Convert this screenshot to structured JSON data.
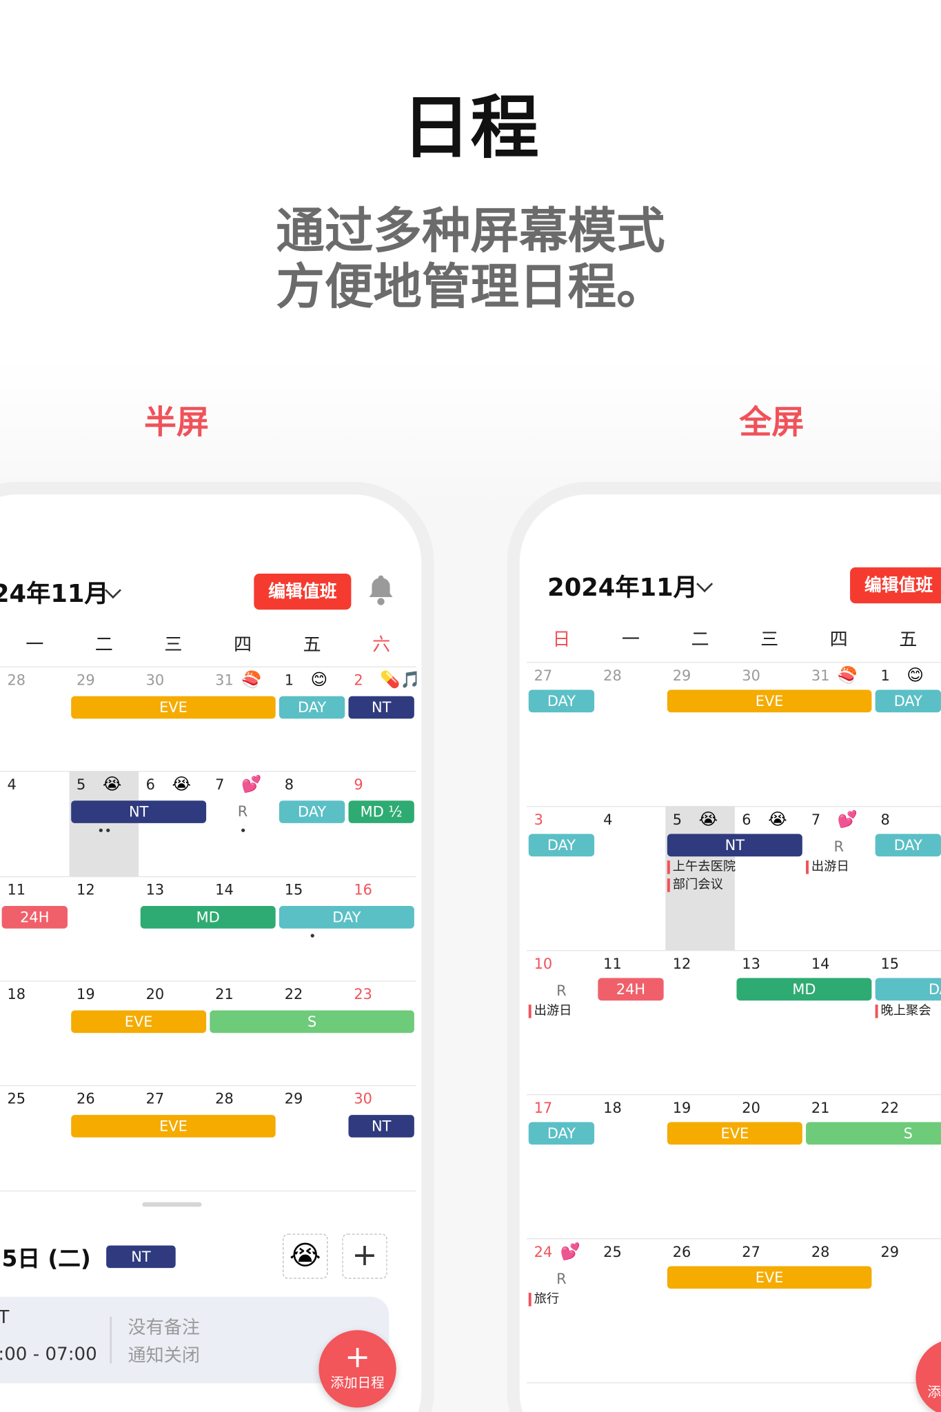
{
  "header": {
    "title": "日程",
    "subtitle": [
      "通过多种屏幕模式",
      "方便地管理日程。"
    ]
  },
  "modes": [
    "半屏",
    "全屏"
  ],
  "month": "2024年11月",
  "edit_button": "编辑值班",
  "weekdays": [
    "日",
    "一",
    "二",
    "三",
    "四",
    "五",
    "六"
  ],
  "shift_colors": {
    "EVE": "#f5ab00",
    "DAY": "#5bbfc6",
    "NT": "#2f3b7e",
    "MD": "#2eab72",
    "MD ½": "#2eab72",
    "24H": "#f0606a",
    "S": "#6dcb79"
  },
  "weeks": [
    {
      "cells": [
        {
          "day": 27,
          "other_month": true,
          "shift": "DAY"
        },
        {
          "day": 28,
          "other_month": true
        },
        {
          "day": 29,
          "other_month": true,
          "shift": "EVE"
        },
        {
          "day": 30,
          "other_month": true,
          "shift": "EVE"
        },
        {
          "day": 31,
          "other_month": true,
          "emoji": "🍣",
          "shift": "EVE"
        },
        {
          "day": 1,
          "emoji": "😊",
          "shift": "DAY"
        },
        {
          "day": 2,
          "emoji": "💊🎵",
          "shift": "NT"
        }
      ]
    },
    {
      "cells": [
        {
          "day": 3,
          "shift": "DAY"
        },
        {
          "day": 4
        },
        {
          "day": 5,
          "emoji": "😭",
          "today": true,
          "shift": "NT",
          "notes": [
            "上午去医院",
            "部门会议"
          ]
        },
        {
          "day": 6,
          "emoji": "😭",
          "shift": "NT"
        },
        {
          "day": 7,
          "emoji": "💕",
          "reminder": "R",
          "notes": [
            "出游日"
          ]
        },
        {
          "day": 8,
          "shift": "DAY"
        },
        {
          "day": 9,
          "shift": "MD ½"
        }
      ]
    },
    {
      "cells": [
        {
          "day": 10,
          "reminder": "R",
          "notes": [
            "出游日"
          ]
        },
        {
          "day": 11,
          "shift": "24H"
        },
        {
          "day": 12
        },
        {
          "day": 13,
          "shift": "MD"
        },
        {
          "day": 14,
          "shift": "MD"
        },
        {
          "day": 15,
          "shift": "DAY",
          "notes": [
            "晚上聚会"
          ]
        },
        {
          "day": 16,
          "shift": "DAY"
        }
      ]
    },
    {
      "cells": [
        {
          "day": 17,
          "shift": "DAY"
        },
        {
          "day": 18
        },
        {
          "day": 19,
          "shift": "EVE"
        },
        {
          "day": 20,
          "shift": "EVE"
        },
        {
          "day": 21,
          "shift": "S"
        },
        {
          "day": 22,
          "shift": "S"
        },
        {
          "day": 23,
          "shift": "S"
        }
      ]
    },
    {
      "cells": [
        {
          "day": 24,
          "emoji": "💕",
          "reminder": "R",
          "notes": [
            "旅行"
          ]
        },
        {
          "day": 25
        },
        {
          "day": 26,
          "shift": "EVE"
        },
        {
          "day": 27,
          "shift": "EVE"
        },
        {
          "day": 28,
          "shift": "EVE"
        },
        {
          "day": 29
        },
        {
          "day": 30,
          "shift": "NT"
        }
      ]
    }
  ],
  "selected_day": {
    "date": "5日 (二)",
    "shift": "NT",
    "emoji": "😭",
    "plus": "+",
    "card": {
      "name": "T",
      "time": ":00 - 07:00",
      "memo": "没有备注",
      "alert": "通知关闭"
    }
  },
  "fab": {
    "icon": "+",
    "label": "添加日程"
  }
}
